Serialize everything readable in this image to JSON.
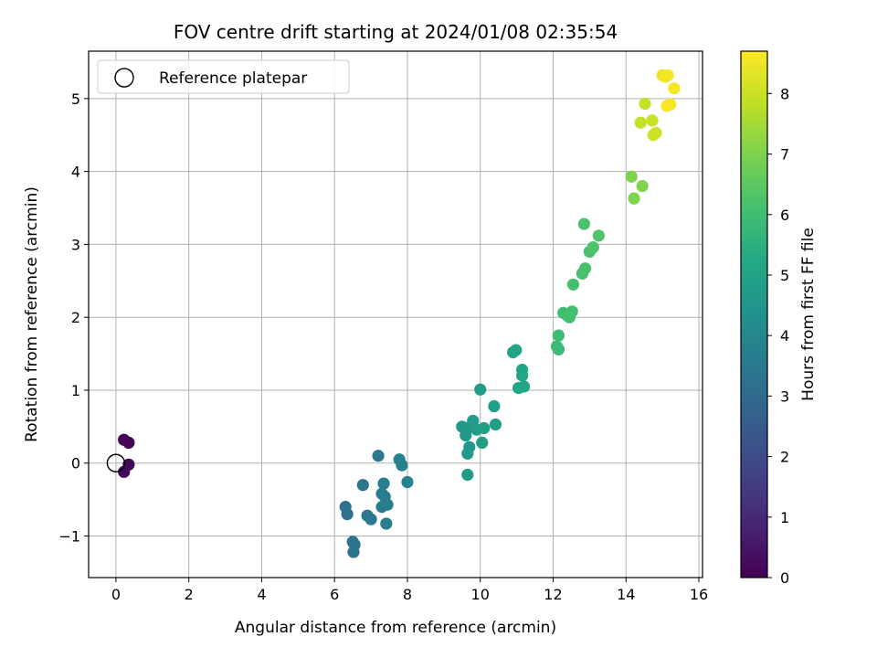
{
  "chart_data": {
    "type": "scatter",
    "title": "FOV centre drift starting at 2024/01/08 02:35:54",
    "xlabel": "Angular distance from reference (arcmin)",
    "ylabel": "Rotation from reference (arcmin)",
    "xlim": [
      -0.75,
      16.1
    ],
    "ylim": [
      -1.57,
      5.65
    ],
    "xticks": [
      0,
      2,
      4,
      6,
      8,
      10,
      12,
      14,
      16
    ],
    "yticks": [
      -1,
      0,
      1,
      2,
      3,
      4,
      5
    ],
    "grid": true,
    "legend": {
      "placement": "top-left",
      "entries": [
        "Reference platepar"
      ]
    },
    "reference_point": {
      "x": 0,
      "y": 0
    },
    "colorbar": {
      "label": "Hours from first FF file",
      "range": [
        0,
        8.7
      ],
      "ticks": [
        0,
        1,
        2,
        3,
        4,
        5,
        6,
        7,
        8
      ],
      "colormap": "viridis"
    },
    "points": [
      {
        "x": 0.22,
        "y": 0.32,
        "t": 0.05
      },
      {
        "x": 0.35,
        "y": 0.28,
        "t": 0.1
      },
      {
        "x": 0.35,
        "y": -0.02,
        "t": 0.15
      },
      {
        "x": 0.22,
        "y": -0.12,
        "t": 0.2
      },
      {
        "x": 6.3,
        "y": -0.6,
        "t": 3.2
      },
      {
        "x": 6.35,
        "y": -0.7,
        "t": 3.25
      },
      {
        "x": 6.5,
        "y": -1.08,
        "t": 3.3
      },
      {
        "x": 6.55,
        "y": -1.12,
        "t": 3.3
      },
      {
        "x": 6.52,
        "y": -1.22,
        "t": 3.35
      },
      {
        "x": 6.78,
        "y": -0.3,
        "t": 3.4
      },
      {
        "x": 6.9,
        "y": -0.72,
        "t": 3.45
      },
      {
        "x": 7.0,
        "y": -0.77,
        "t": 3.5
      },
      {
        "x": 7.2,
        "y": 0.1,
        "t": 3.55
      },
      {
        "x": 7.3,
        "y": -0.42,
        "t": 3.6
      },
      {
        "x": 7.38,
        "y": -0.46,
        "t": 3.6
      },
      {
        "x": 7.35,
        "y": -0.28,
        "t": 3.65
      },
      {
        "x": 7.3,
        "y": -0.6,
        "t": 3.65
      },
      {
        "x": 7.45,
        "y": -0.57,
        "t": 3.7
      },
      {
        "x": 7.42,
        "y": -0.83,
        "t": 3.7
      },
      {
        "x": 7.78,
        "y": 0.05,
        "t": 3.75
      },
      {
        "x": 7.85,
        "y": -0.03,
        "t": 3.8
      },
      {
        "x": 8.0,
        "y": -0.26,
        "t": 3.85
      },
      {
        "x": 9.5,
        "y": 0.5,
        "t": 4.6
      },
      {
        "x": 9.6,
        "y": 0.38,
        "t": 4.65
      },
      {
        "x": 9.65,
        "y": 0.48,
        "t": 4.65
      },
      {
        "x": 9.7,
        "y": 0.22,
        "t": 4.7
      },
      {
        "x": 9.65,
        "y": 0.13,
        "t": 4.7
      },
      {
        "x": 9.65,
        "y": -0.16,
        "t": 4.75
      },
      {
        "x": 9.8,
        "y": 0.58,
        "t": 4.75
      },
      {
        "x": 9.9,
        "y": 0.46,
        "t": 4.8
      },
      {
        "x": 10.0,
        "y": 1.01,
        "t": 4.8
      },
      {
        "x": 10.05,
        "y": 0.28,
        "t": 4.85
      },
      {
        "x": 10.1,
        "y": 0.48,
        "t": 4.85
      },
      {
        "x": 10.38,
        "y": 0.78,
        "t": 4.9
      },
      {
        "x": 10.42,
        "y": 0.53,
        "t": 4.9
      },
      {
        "x": 10.9,
        "y": 1.52,
        "t": 5.0
      },
      {
        "x": 10.98,
        "y": 1.55,
        "t": 5.05
      },
      {
        "x": 11.05,
        "y": 1.03,
        "t": 5.1
      },
      {
        "x": 11.15,
        "y": 1.28,
        "t": 5.1
      },
      {
        "x": 11.15,
        "y": 1.2,
        "t": 5.15
      },
      {
        "x": 11.2,
        "y": 1.05,
        "t": 5.15
      },
      {
        "x": 12.1,
        "y": 1.6,
        "t": 5.9
      },
      {
        "x": 12.15,
        "y": 1.56,
        "t": 5.9
      },
      {
        "x": 12.15,
        "y": 1.75,
        "t": 5.95
      },
      {
        "x": 12.28,
        "y": 2.06,
        "t": 6.0
      },
      {
        "x": 12.4,
        "y": 2.02,
        "t": 6.0
      },
      {
        "x": 12.45,
        "y": 2.0,
        "t": 6.05
      },
      {
        "x": 12.52,
        "y": 2.08,
        "t": 6.05
      },
      {
        "x": 12.55,
        "y": 2.45,
        "t": 6.1
      },
      {
        "x": 12.8,
        "y": 2.6,
        "t": 6.15
      },
      {
        "x": 12.88,
        "y": 2.67,
        "t": 6.15
      },
      {
        "x": 12.85,
        "y": 3.28,
        "t": 6.2
      },
      {
        "x": 13.0,
        "y": 2.9,
        "t": 6.2
      },
      {
        "x": 13.1,
        "y": 2.96,
        "t": 6.25
      },
      {
        "x": 13.25,
        "y": 3.12,
        "t": 6.3
      },
      {
        "x": 14.15,
        "y": 3.93,
        "t": 7.0
      },
      {
        "x": 14.22,
        "y": 3.63,
        "t": 7.0
      },
      {
        "x": 14.45,
        "y": 3.8,
        "t": 7.05
      },
      {
        "x": 14.4,
        "y": 4.67,
        "t": 7.9
      },
      {
        "x": 14.52,
        "y": 4.93,
        "t": 7.95
      },
      {
        "x": 14.72,
        "y": 4.7,
        "t": 8.0
      },
      {
        "x": 14.75,
        "y": 4.5,
        "t": 8.05
      },
      {
        "x": 14.82,
        "y": 4.53,
        "t": 8.05
      },
      {
        "x": 15.0,
        "y": 5.32,
        "t": 8.5
      },
      {
        "x": 15.08,
        "y": 5.3,
        "t": 8.55
      },
      {
        "x": 15.15,
        "y": 5.32,
        "t": 8.55
      },
      {
        "x": 15.12,
        "y": 4.9,
        "t": 8.6
      },
      {
        "x": 15.22,
        "y": 4.92,
        "t": 8.6
      },
      {
        "x": 15.32,
        "y": 5.14,
        "t": 8.65
      }
    ]
  }
}
